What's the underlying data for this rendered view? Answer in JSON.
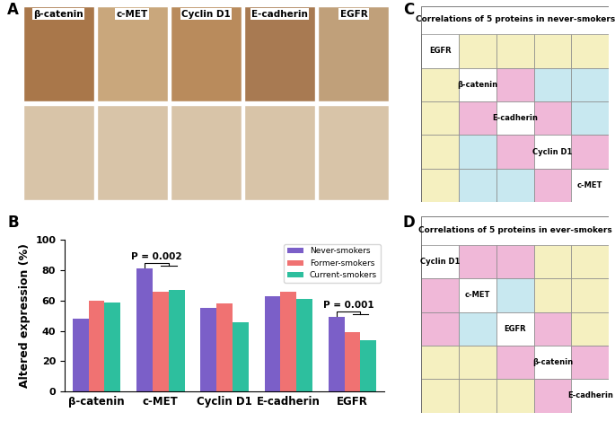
{
  "chart_data": {
    "type": "bar",
    "categories": [
      "β-catenin",
      "c-MET",
      "Cyclin D1",
      "E-cadherin",
      "EGFR"
    ],
    "series": [
      {
        "name": "Never-smokers",
        "color": "#7b5fc8",
        "values": [
          48,
          81,
          55,
          63,
          49
        ]
      },
      {
        "name": "Former-smokers",
        "color": "#f07272",
        "values": [
          60,
          66,
          58,
          66,
          39
        ]
      },
      {
        "name": "Current-smokers",
        "color": "#2dbf9e",
        "values": [
          59,
          67,
          46,
          61,
          34
        ]
      }
    ],
    "y_label": "Altered expression (%)",
    "ylim": [
      0,
      100
    ],
    "yticks": [
      0,
      20,
      40,
      60,
      80,
      100
    ],
    "legend": "upper right",
    "annotations": [
      {
        "text": "P = 0.002",
        "category": "c-MET"
      },
      {
        "text": "P = 0.001",
        "category": "EGFR"
      }
    ]
  },
  "panel_letters": [
    "A",
    "B",
    "C",
    "D"
  ],
  "panel_a": {
    "labels": [
      "β-catenin",
      "c-MET",
      "Cyclin D1",
      "E-cadherin",
      "EGFR"
    ]
  },
  "panel_c": {
    "title": "Correlations of 5 proteins in never-smokers",
    "labels": [
      "EGFR",
      "β-catenin",
      "E-cadherin",
      "Cyclin D1",
      "c-MET"
    ],
    "cell_colors": [
      [
        null,
        "#f5f0c0",
        "#f5f0c0",
        "#f5f0c0",
        "#f5f0c0"
      ],
      [
        "#f5f0c0",
        null,
        "#f0b8d8",
        "#c8e8f0",
        "#c8e8f0"
      ],
      [
        "#f5f0c0",
        "#f0b8d8",
        null,
        "#f0b8d8",
        "#c8e8f0"
      ],
      [
        "#f5f0c0",
        "#c8e8f0",
        "#f0b8d8",
        null,
        "#f0b8d8"
      ],
      [
        "#f5f0c0",
        "#c8e8f0",
        "#c8e8f0",
        "#f0b8d8",
        null
      ]
    ]
  },
  "panel_d": {
    "title": "Correlations of 5 proteins in ever-smokers",
    "labels": [
      "Cyclin D1",
      "c-MET",
      "EGFR",
      "β-catenin",
      "E-cadherin"
    ],
    "cell_colors": [
      [
        null,
        "#f0b8d8",
        "#f0b8d8",
        "#f5f0c0",
        "#f5f0c0"
      ],
      [
        "#f0b8d8",
        null,
        "#c8e8f0",
        "#f5f0c0",
        "#f5f0c0"
      ],
      [
        "#f0b8d8",
        "#c8e8f0",
        null,
        "#f0b8d8",
        "#f5f0c0"
      ],
      [
        "#f5f0c0",
        "#f5f0c0",
        "#f0b8d8",
        null,
        "#f0b8d8"
      ],
      [
        "#f5f0c0",
        "#f5f0c0",
        "#f5f0c0",
        "#f0b8d8",
        null
      ]
    ]
  }
}
